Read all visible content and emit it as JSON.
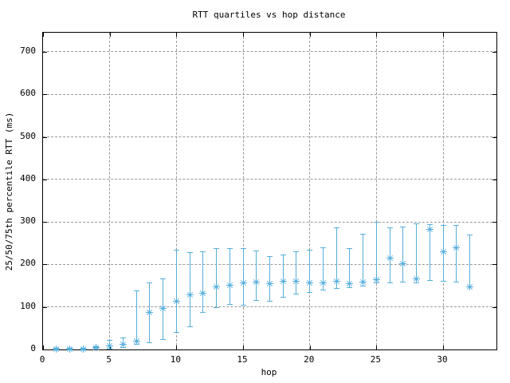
{
  "title": "RTT quartiles vs hop distance",
  "colors": {
    "data": "#56AEDC",
    "grid": "#9a9a9a",
    "border": "#000000",
    "text": "#000000",
    "background": "#ffffff"
  },
  "chart_data": {
    "type": "scatter",
    "subtype": "errorbars-quartiles",
    "title": "RTT quartiles vs hop distance",
    "xlabel": "hop",
    "ylabel": "25/50/75th percentile RTT (ms)",
    "x_ticks": [
      0,
      5,
      10,
      15,
      20,
      25,
      30
    ],
    "y_ticks": [
      0,
      100,
      200,
      300,
      400,
      500,
      600,
      700
    ],
    "xlim": [
      0,
      34
    ],
    "ylim": [
      0,
      745
    ],
    "grid": true,
    "legend_position": "none",
    "marker": "asterisk",
    "series_name": "RTT 25th/50th/75th percentile vs hop",
    "points": [
      {
        "hop": 1,
        "q25": 0,
        "median": 1,
        "q75": 2
      },
      {
        "hop": 2,
        "q25": 0,
        "median": 1,
        "q75": 2
      },
      {
        "hop": 3,
        "q25": 0,
        "median": 1,
        "q75": 2
      },
      {
        "hop": 4,
        "q25": 2,
        "median": 4,
        "q75": 7
      },
      {
        "hop": 5,
        "q25": 1,
        "median": 8,
        "q75": 21
      },
      {
        "hop": 6,
        "q25": 5,
        "median": 13,
        "q75": 27
      },
      {
        "hop": 7,
        "q25": 12,
        "median": 19,
        "q75": 138
      },
      {
        "hop": 8,
        "q25": 16,
        "median": 87,
        "q75": 156
      },
      {
        "hop": 9,
        "q25": 24,
        "median": 97,
        "q75": 166
      },
      {
        "hop": 10,
        "q25": 40,
        "median": 113,
        "q75": 234
      },
      {
        "hop": 11,
        "q25": 54,
        "median": 129,
        "q75": 228
      },
      {
        "hop": 12,
        "q25": 87,
        "median": 133,
        "q75": 230
      },
      {
        "hop": 13,
        "q25": 98,
        "median": 148,
        "q75": 237
      },
      {
        "hop": 14,
        "q25": 106,
        "median": 152,
        "q75": 237
      },
      {
        "hop": 15,
        "q25": 104,
        "median": 157,
        "q75": 238
      },
      {
        "hop": 16,
        "q25": 115,
        "median": 158,
        "q75": 232
      },
      {
        "hop": 17,
        "q25": 113,
        "median": 155,
        "q75": 218
      },
      {
        "hop": 18,
        "q25": 122,
        "median": 160,
        "q75": 222
      },
      {
        "hop": 19,
        "q25": 130,
        "median": 160,
        "q75": 229
      },
      {
        "hop": 20,
        "q25": 134,
        "median": 156,
        "q75": 233
      },
      {
        "hop": 21,
        "q25": 139,
        "median": 156,
        "q75": 240
      },
      {
        "hop": 22,
        "q25": 144,
        "median": 161,
        "q75": 286
      },
      {
        "hop": 23,
        "q25": 145,
        "median": 155,
        "q75": 238
      },
      {
        "hop": 24,
        "q25": 150,
        "median": 158,
        "q75": 272
      },
      {
        "hop": 25,
        "q25": 157,
        "median": 164,
        "q75": 300
      },
      {
        "hop": 26,
        "q25": 157,
        "median": 215,
        "q75": 287
      },
      {
        "hop": 27,
        "q25": 158,
        "median": 201,
        "q75": 288
      },
      {
        "hop": 28,
        "q25": 156,
        "median": 167,
        "q75": 295
      },
      {
        "hop": 29,
        "q25": 162,
        "median": 282,
        "q75": 293
      },
      {
        "hop": 30,
        "q25": 160,
        "median": 230,
        "q75": 292
      },
      {
        "hop": 31,
        "q25": 158,
        "median": 240,
        "q75": 292
      },
      {
        "hop": 32,
        "q25": 148,
        "median": 148,
        "q75": 270
      }
    ]
  }
}
